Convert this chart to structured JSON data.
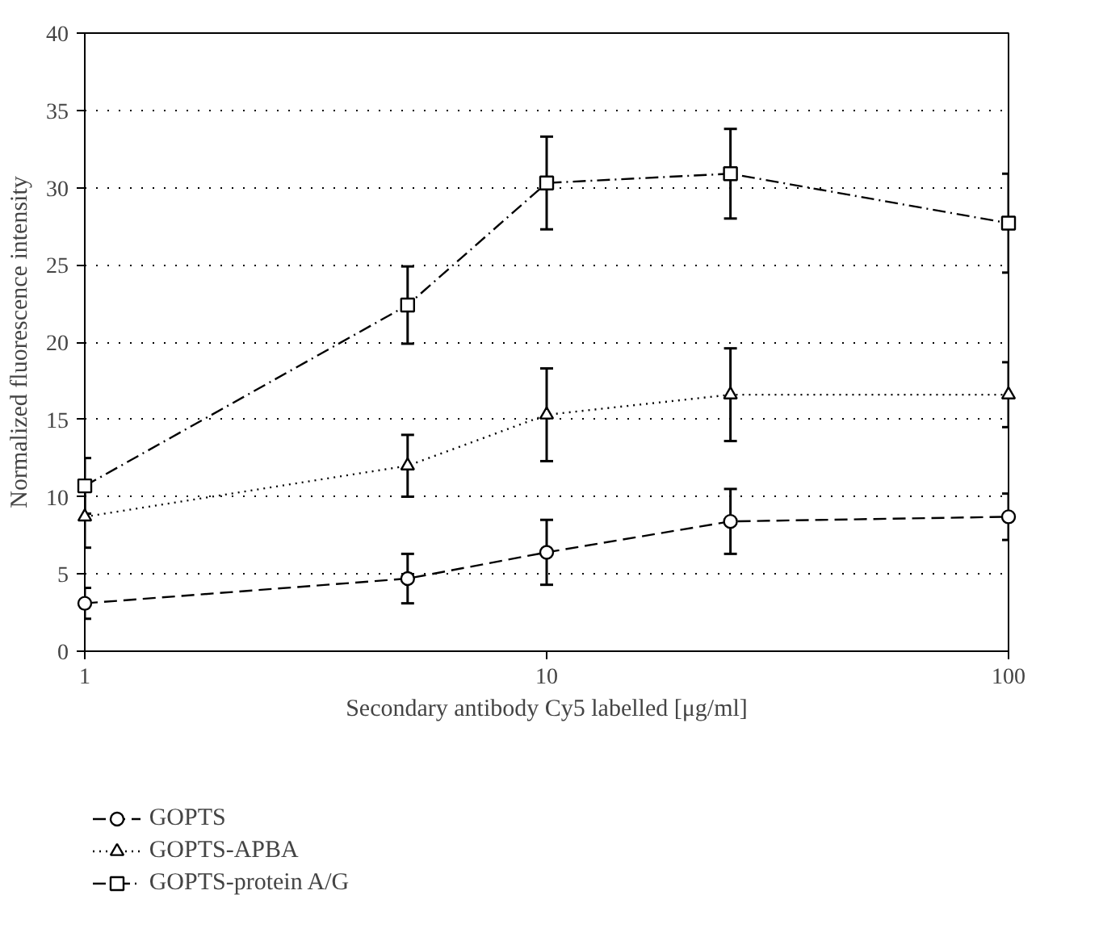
{
  "chart_data": {
    "type": "line",
    "xlabel": "Secondary antibody Cy5 labelled [μg/ml]",
    "ylabel": "Normalized fluorescence intensity",
    "x": [
      1,
      5,
      10,
      25,
      100
    ],
    "log": "x",
    "xlim": [
      1,
      100
    ],
    "xticks": [
      1,
      10,
      100
    ],
    "ylim": [
      0,
      40
    ],
    "yticks": [
      0,
      5,
      10,
      15,
      20,
      25,
      30,
      35,
      40
    ],
    "grid": "y",
    "legend": "bottom left",
    "series": [
      {
        "name": "GOPTS",
        "color": "#000000",
        "marker": "circle",
        "line_style": "dashed",
        "values": [
          3.1,
          4.7,
          6.4,
          8.4,
          8.7
        ],
        "errors": [
          1.0,
          1.6,
          2.1,
          2.1,
          1.5
        ]
      },
      {
        "name": "GOPTS-APBA",
        "color": "#000000",
        "marker": "triangle",
        "line_style": "dotted",
        "values": [
          8.7,
          12.0,
          15.3,
          16.6,
          16.6
        ],
        "errors": [
          2.0,
          2.0,
          3.0,
          3.0,
          2.1
        ]
      },
      {
        "name": "GOPTS-protein A/G",
        "color": "#000000",
        "marker": "square",
        "line_style": "dashdot",
        "values": [
          10.7,
          22.4,
          30.3,
          30.9,
          27.7
        ],
        "errors": [
          1.8,
          2.5,
          3.0,
          2.9,
          3.2
        ]
      }
    ]
  }
}
